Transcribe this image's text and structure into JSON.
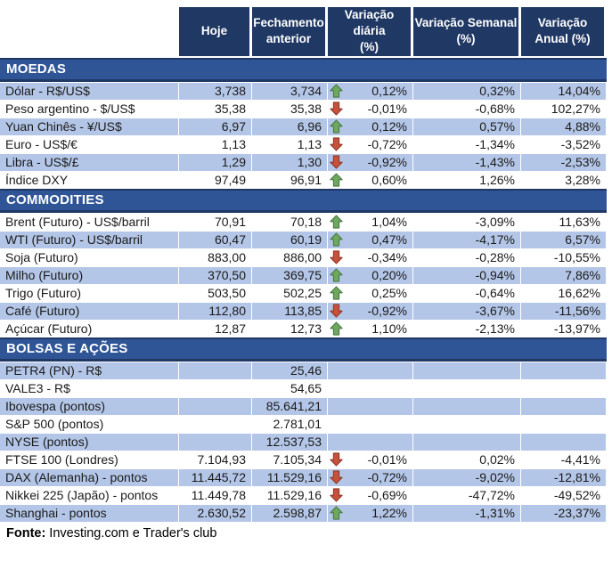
{
  "colors": {
    "header_bg": "#1F3864",
    "band_bg": "#2F5597",
    "band_border": "#1F3864",
    "row_alt_bg": "#B4C6E7",
    "row_bg": "#FFFFFF",
    "text": "#1A1A1A",
    "up_fill": "#6EA85F",
    "up_stroke": "#4C7A45",
    "down_fill": "#C8513B",
    "down_stroke": "#8E3B2A"
  },
  "footer": {
    "label": "Fonte:",
    "text": "Investing.com e Trader's club"
  },
  "chart_data": {
    "type": "table",
    "columns": [
      {
        "lines": [
          "Hoje"
        ]
      },
      {
        "lines": [
          "Fechamento",
          "anterior"
        ]
      },
      {
        "lines": [
          "Variação diária",
          "(%)"
        ]
      },
      {
        "lines": [
          "Variação Semanal",
          "(%)"
        ]
      },
      {
        "lines": [
          "Variação",
          "Anual (%)"
        ]
      }
    ],
    "sections": [
      {
        "title": "MOEDAS",
        "shade_start": "blue",
        "rows": [
          {
            "label": "Dólar - R$/US$",
            "hoje": "3,738",
            "prev": "3,734",
            "trend": "up",
            "daily": "0,12%",
            "weekly": "0,32%",
            "annual": "14,04%"
          },
          {
            "label": "Peso argentino - $/US$",
            "hoje": "35,38",
            "prev": "35,38",
            "trend": "down",
            "daily": "-0,01%",
            "weekly": "-0,68%",
            "annual": "102,27%"
          },
          {
            "label": "Yuan Chinês - ¥/US$",
            "hoje": "6,97",
            "prev": "6,96",
            "trend": "up",
            "daily": "0,12%",
            "weekly": "0,57%",
            "annual": "4,88%"
          },
          {
            "label": "Euro - US$/€",
            "hoje": "1,13",
            "prev": "1,13",
            "trend": "down",
            "daily": "-0,72%",
            "weekly": "-1,34%",
            "annual": "-3,52%"
          },
          {
            "label": "Libra - US$/£",
            "hoje": "1,29",
            "prev": "1,30",
            "trend": "down",
            "daily": "-0,92%",
            "weekly": "-1,43%",
            "annual": "-2,53%"
          },
          {
            "label": "Índice DXY",
            "hoje": "97,49",
            "prev": "96,91",
            "trend": "up",
            "daily": "0,60%",
            "weekly": "1,26%",
            "annual": "3,28%"
          }
        ]
      },
      {
        "title": "COMMODITIES",
        "shade_start": "white",
        "rows": [
          {
            "label": "Brent (Futuro) - US$/barril",
            "hoje": "70,91",
            "prev": "70,18",
            "trend": "up",
            "daily": "1,04%",
            "weekly": "-3,09%",
            "annual": "11,63%"
          },
          {
            "label": "WTI (Futuro) - US$/barril",
            "hoje": "60,47",
            "prev": "60,19",
            "trend": "up",
            "daily": "0,47%",
            "weekly": "-4,17%",
            "annual": "6,57%"
          },
          {
            "label": "Soja (Futuro)",
            "hoje": "883,00",
            "prev": "886,00",
            "trend": "down",
            "daily": "-0,34%",
            "weekly": "-0,28%",
            "annual": "-10,55%"
          },
          {
            "label": "Milho (Futuro)",
            "hoje": "370,50",
            "prev": "369,75",
            "trend": "up",
            "daily": "0,20%",
            "weekly": "-0,94%",
            "annual": "7,86%"
          },
          {
            "label": "Trigo (Futuro)",
            "hoje": "503,50",
            "prev": "502,25",
            "trend": "up",
            "daily": "0,25%",
            "weekly": "-0,64%",
            "annual": "16,62%"
          },
          {
            "label": "Café (Futuro)",
            "hoje": "112,80",
            "prev": "113,85",
            "trend": "down",
            "daily": "-0,92%",
            "weekly": "-3,67%",
            "annual": "-11,56%"
          },
          {
            "label": "Açúcar (Futuro)",
            "hoje": "12,87",
            "prev": "12,73",
            "trend": "up",
            "daily": "1,10%",
            "weekly": "-2,13%",
            "annual": "-13,97%"
          }
        ]
      },
      {
        "title": "BOLSAS E AÇÕES",
        "shade_start": "blue",
        "rows": [
          {
            "label": "PETR4 (PN) - R$",
            "hoje": "",
            "prev": "25,46",
            "trend": null,
            "daily": "",
            "weekly": "",
            "annual": ""
          },
          {
            "label": "VALE3 - R$",
            "hoje": "",
            "prev": "54,65",
            "trend": null,
            "daily": "",
            "weekly": "",
            "annual": ""
          },
          {
            "label": "Ibovespa (pontos)",
            "hoje": "",
            "prev": "85.641,21",
            "trend": null,
            "daily": "",
            "weekly": "",
            "annual": ""
          },
          {
            "label": "S&P 500 (pontos)",
            "hoje": "",
            "prev": "2.781,01",
            "trend": null,
            "daily": "",
            "weekly": "",
            "annual": ""
          },
          {
            "label": "NYSE (pontos)",
            "hoje": "",
            "prev": "12.537,53",
            "trend": null,
            "daily": "",
            "weekly": "",
            "annual": ""
          },
          {
            "label": "FTSE 100 (Londres)",
            "hoje": "7.104,93",
            "prev": "7.105,34",
            "trend": "down",
            "daily": "-0,01%",
            "weekly": "0,02%",
            "annual": "-4,41%"
          },
          {
            "label": "DAX (Alemanha) - pontos",
            "hoje": "11.445,72",
            "prev": "11.529,16",
            "trend": "down",
            "daily": "-0,72%",
            "weekly": "-9,02%",
            "annual": "-12,81%"
          },
          {
            "label": "Nikkei 225 (Japão) - pontos",
            "hoje": "11.449,78",
            "prev": "11.529,16",
            "trend": "down",
            "daily": "-0,69%",
            "weekly": "-47,72%",
            "annual": "-49,52%"
          },
          {
            "label": "Shanghai - pontos",
            "hoje": "2.630,52",
            "prev": "2.598,87",
            "trend": "up",
            "daily": "1,22%",
            "weekly": "-1,31%",
            "annual": "-23,37%"
          }
        ]
      }
    ]
  }
}
